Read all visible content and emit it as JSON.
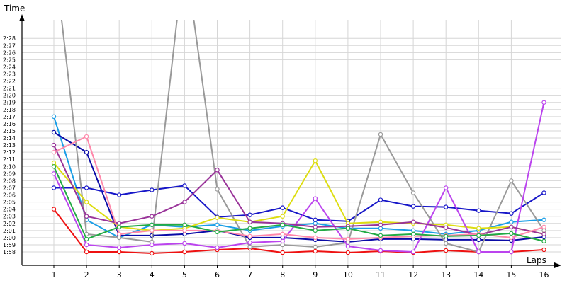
{
  "chart_data": {
    "type": "line",
    "xlabel": "Laps",
    "ylabel": "Time",
    "x": [
      1,
      2,
      3,
      4,
      5,
      6,
      7,
      8,
      9,
      10,
      11,
      12,
      13,
      14,
      15,
      16
    ],
    "xlim": [
      0,
      16
    ],
    "ylim_seconds": [
      116.5,
      149.5
    ],
    "y_ticks": [
      "1:58",
      "1:59",
      "2:00",
      "2:01",
      "2:02",
      "2:03",
      "2:04",
      "2:05",
      "2:06",
      "2:07",
      "2:08",
      "2:09",
      "2:10",
      "2:11",
      "2:12",
      "2:13",
      "2:14",
      "2:15",
      "2:16",
      "2:17",
      "2:18",
      "2:19",
      "2:20",
      "2:21",
      "2:22",
      "2:23",
      "2:24",
      "2:25",
      "2:26",
      "2:27",
      "2:28"
    ],
    "grid": true,
    "legend": "none",
    "series": [
      {
        "color": "#ee1111",
        "values": [
          "2:04",
          "1:58",
          "1:58",
          "1:57.8",
          "1:58",
          "1:58.3",
          "1:58.5",
          "1:57.9",
          "1:58.1",
          "1:57.9",
          "1:58.1",
          "1:57.9",
          "1:58.2",
          "1:58",
          "1:58",
          "1:58.3"
        ]
      },
      {
        "color": "#1a9ee6",
        "values": [
          "2:17",
          "2:02.5",
          "2:00",
          "2:01.8",
          "2:01.5",
          "2:01.8",
          "2:01",
          "2:01.6",
          "2:02",
          "2:01.3",
          "2:01.3",
          "2:01",
          "2:00.5",
          "2:01",
          "2:02.2",
          "2:02.5"
        ]
      },
      {
        "color": "#0a0aa6",
        "values": [
          "2:14.8",
          "2:12",
          "2:00.3",
          "2:00.3",
          "2:00.5",
          "2:01",
          "2:00",
          "2:00",
          "1:59.7",
          "1:59.4",
          "1:59.8",
          "1:59.8",
          "1:59.7",
          "1:59.7",
          "1:59.6",
          "2:00.1"
        ]
      },
      {
        "color": "#1616c8",
        "values": [
          "2:07",
          "2:07",
          "2:06",
          "2:06.7",
          "2:07.3",
          "2:02.9",
          "2:03.2",
          "2:04.2",
          "2:02.5",
          "2:02.3",
          "2:05.3",
          "2:04.4",
          "2:04.3",
          "2:03.8",
          "2:03.4",
          "2:06.3"
        ]
      },
      {
        "color": "#999999",
        "values": [
          "2:40",
          "2:00.5",
          "2:00",
          "1:59.4",
          "2:40",
          "2:06.8",
          "1:58.7",
          "1:59",
          "1:58.7",
          "1:59.3",
          "2:14.5",
          "2:06.3",
          "1:59.2",
          "1:58",
          "2:08",
          "2:01"
        ]
      },
      {
        "color": "#dddd11",
        "values": [
          "2:10.5",
          "2:05",
          "2:01.5",
          "2:01",
          "2:01.3",
          "2:02.8",
          "2:02.2",
          "2:03",
          "2:10.8",
          "2:02",
          "2:02.2",
          "2:02",
          "2:01.8",
          "2:01.3",
          "2:01.5",
          "2:00.5"
        ]
      },
      {
        "color": "#bb44ee",
        "values": [
          "2:09",
          "1:59",
          "1:58.6",
          "1:59",
          "1:59.2",
          "1:58.6",
          "1:59.3",
          "1:59.5",
          "2:05.5",
          "1:58.8",
          "1:58.2",
          "1:58",
          "2:07",
          "1:58",
          "1:58",
          "2:19"
        ]
      },
      {
        "color": "#993399",
        "values": [
          "2:13",
          "2:03",
          "2:02",
          "2:03",
          "2:05",
          "2:09.5",
          "2:02.2",
          "2:02",
          "2:01.5",
          "2:01.6",
          "2:01.8",
          "2:02.2",
          "2:01.4",
          "2:00.4",
          "2:01.5",
          "2:00.5"
        ]
      },
      {
        "color": "#ff88aa",
        "values": [
          "2:12",
          "2:14.2",
          "2:00.5",
          "2:01",
          "2:01",
          "2:01",
          "2:00.2",
          "2:00.5",
          "2:00",
          "1:59.8",
          "2:00",
          "2:00.2",
          "2:00.3",
          "2:00.5",
          "2:00",
          "2:01.5"
        ]
      },
      {
        "color": "#22aa44",
        "values": [
          "2:10",
          "1:59.8",
          "2:01.5",
          "2:01.8",
          "2:01.8",
          "2:00.8",
          "2:01.3",
          "2:01.8",
          "2:01",
          "2:01.3",
          "2:00.3",
          "2:00.5",
          "2:00.2",
          "2:00.3",
          "2:00.6",
          "1:59.5"
        ]
      }
    ]
  }
}
